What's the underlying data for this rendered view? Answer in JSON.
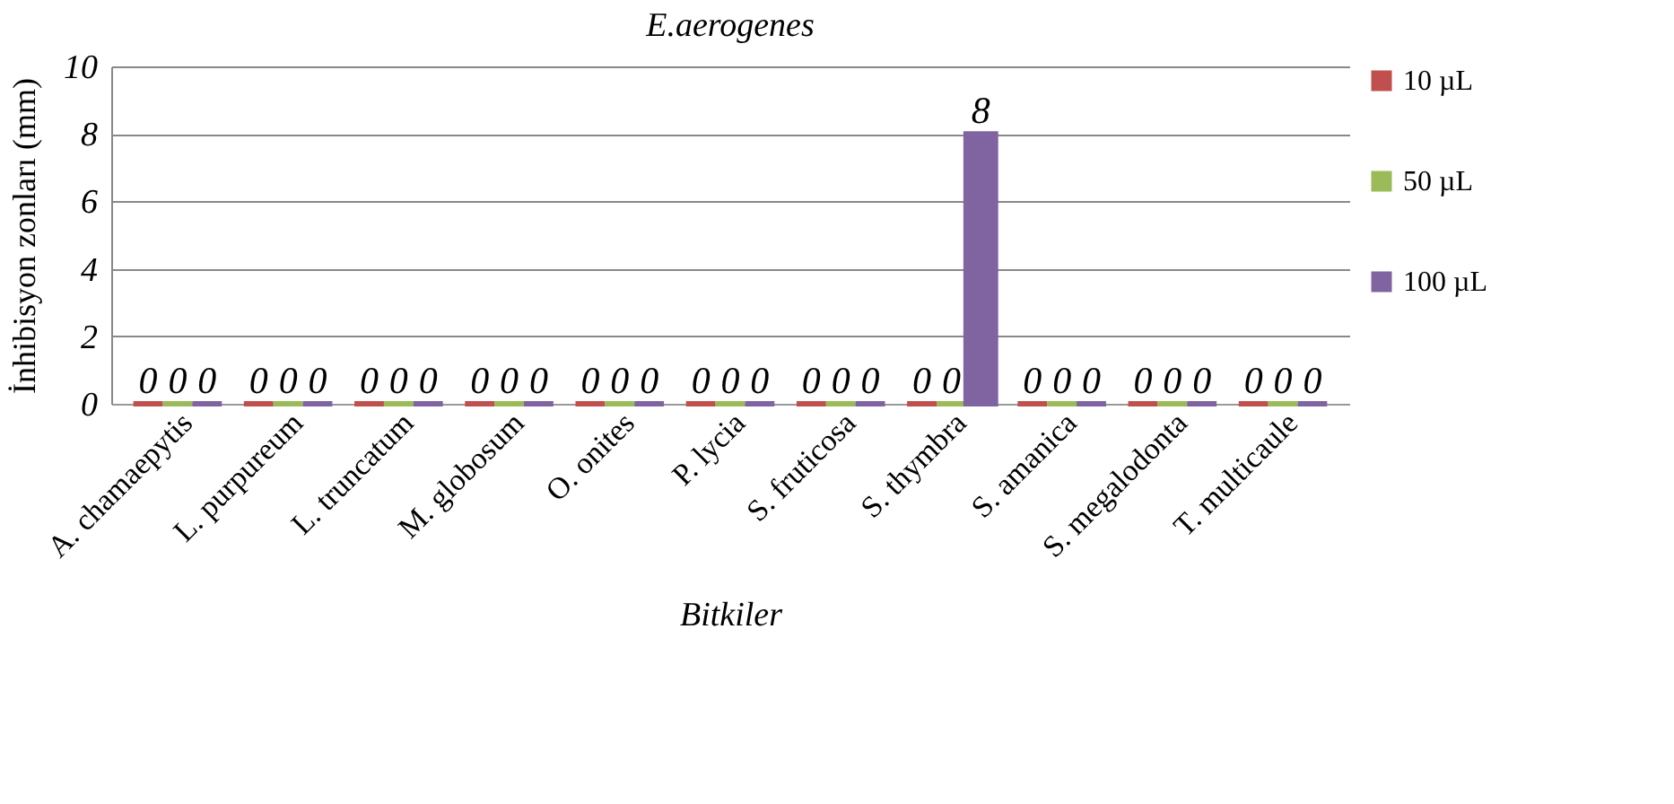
{
  "chart_data": {
    "type": "bar",
    "title": "E.aerogenes",
    "xlabel": "Bitkiler",
    "ylabel": "İnhibisyon zonları (mm)",
    "categories": [
      "A. chamaepytis",
      "L. purpureum",
      "L. truncatum",
      "M. globosum",
      "O. onites",
      "P. lycia",
      "S. fruticosa",
      "S. thymbra",
      "S. amanica",
      "S. megalodonta",
      "T. multicaule"
    ],
    "series": [
      {
        "name": "10 µL",
        "color": "#c0504d",
        "values": [
          0,
          0,
          0,
          0,
          0,
          0,
          0,
          0,
          0,
          0,
          0
        ]
      },
      {
        "name": "50 µL",
        "color": "#9bbb59",
        "values": [
          0,
          0,
          0,
          0,
          0,
          0,
          0,
          0,
          0,
          0,
          0
        ]
      },
      {
        "name": "100 µL",
        "color": "#8064a2",
        "values": [
          0,
          0,
          0,
          0,
          0,
          0,
          0,
          8,
          0,
          0,
          0
        ]
      }
    ],
    "ylim": [
      0,
      10
    ],
    "yticks": [
      0,
      2,
      4,
      6,
      8,
      10
    ],
    "grid": "y",
    "legend": "right",
    "data_labels": true
  }
}
